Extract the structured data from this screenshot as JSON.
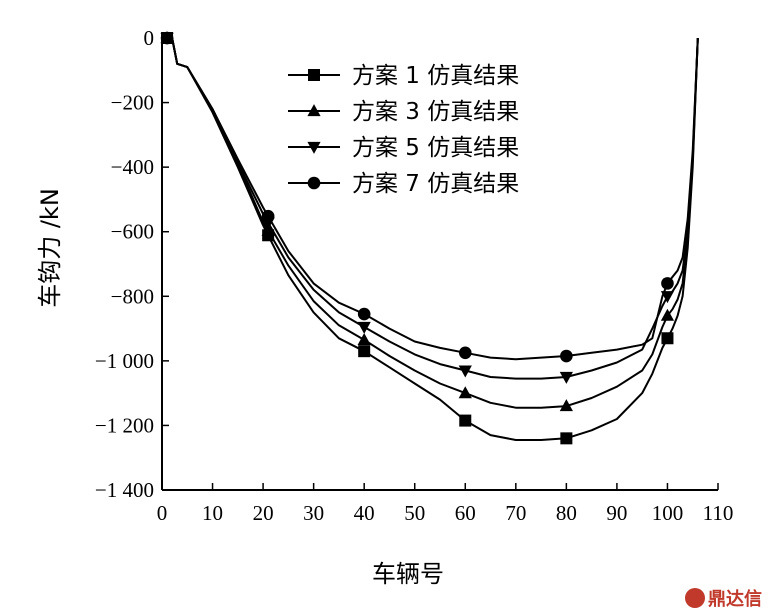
{
  "chart_data": {
    "type": "line",
    "xlabel": "车辆号",
    "ylabel": "车钩力 /kN",
    "xlim": [
      0,
      110
    ],
    "ylim": [
      -1400,
      0
    ],
    "xticks": [
      0,
      10,
      20,
      30,
      40,
      50,
      60,
      70,
      80,
      90,
      100,
      110
    ],
    "yticks": [
      0,
      -200,
      -400,
      -600,
      -800,
      -1000,
      -1200,
      -1400
    ],
    "xtick_labels": [
      "0",
      "10",
      "20",
      "30",
      "40",
      "50",
      "60",
      "70",
      "80",
      "90",
      "100",
      "110"
    ],
    "ytick_labels": [
      "0",
      "−200",
      "−400",
      "−600",
      "−800",
      "−1 000",
      "−1 200",
      "−1 400"
    ],
    "grid": false,
    "legend_position": "top-center",
    "series": [
      {
        "name": "方案 1 仿真结果",
        "marker": "square",
        "x": [
          1,
          2,
          3,
          5,
          10,
          15,
          20,
          25,
          30,
          35,
          40,
          45,
          50,
          55,
          60,
          65,
          70,
          75,
          80,
          85,
          90,
          95,
          97,
          99,
          100,
          101,
          102,
          103,
          104,
          105,
          106
        ],
        "y": [
          0,
          0,
          -80,
          -90,
          -230,
          -400,
          -580,
          -735,
          -850,
          -930,
          -970,
          -1020,
          -1070,
          -1120,
          -1185,
          -1230,
          -1245,
          -1245,
          -1240,
          -1215,
          -1180,
          -1100,
          -1040,
          -960,
          -930,
          -900,
          -860,
          -800,
          -650,
          -400,
          0
        ],
        "marker_x": [
          1,
          21,
          40,
          60,
          80,
          100
        ]
      },
      {
        "name": "方案 3 仿真结果",
        "marker": "triangle-up",
        "x": [
          1,
          2,
          3,
          5,
          10,
          15,
          20,
          25,
          30,
          35,
          40,
          45,
          50,
          55,
          60,
          65,
          70,
          75,
          80,
          85,
          90,
          95,
          97,
          99,
          100,
          101,
          102,
          103,
          104,
          105,
          106
        ],
        "y": [
          0,
          0,
          -80,
          -90,
          -225,
          -390,
          -570,
          -705,
          -815,
          -890,
          -935,
          -985,
          -1030,
          -1070,
          -1100,
          -1130,
          -1145,
          -1145,
          -1140,
          -1115,
          -1080,
          -1030,
          -980,
          -895,
          -860,
          -840,
          -810,
          -760,
          -620,
          -380,
          0
        ],
        "marker_x": [
          1,
          21,
          40,
          60,
          80,
          100
        ]
      },
      {
        "name": "方案 5 仿真结果",
        "marker": "triangle-down",
        "x": [
          1,
          2,
          3,
          5,
          10,
          15,
          20,
          25,
          30,
          35,
          40,
          45,
          50,
          55,
          60,
          65,
          70,
          75,
          80,
          85,
          90,
          95,
          97,
          99,
          100,
          101,
          102,
          103,
          104,
          105,
          106
        ],
        "y": [
          0,
          0,
          -80,
          -90,
          -220,
          -385,
          -545,
          -680,
          -780,
          -850,
          -895,
          -940,
          -980,
          -1010,
          -1030,
          -1050,
          -1055,
          -1055,
          -1050,
          -1030,
          -1005,
          -965,
          -900,
          -830,
          -800,
          -785,
          -760,
          -720,
          -600,
          -370,
          0
        ],
        "marker_x": [
          1,
          21,
          40,
          60,
          80,
          100
        ]
      },
      {
        "name": "方案 7 仿真结果",
        "marker": "circle",
        "x": [
          1,
          2,
          3,
          5,
          10,
          15,
          20,
          25,
          30,
          35,
          40,
          45,
          50,
          55,
          60,
          65,
          70,
          75,
          80,
          85,
          90,
          95,
          97,
          99,
          100,
          101,
          102,
          103,
          104,
          105,
          106
        ],
        "y": [
          0,
          0,
          -80,
          -90,
          -220,
          -375,
          -525,
          -660,
          -760,
          -820,
          -855,
          -900,
          -940,
          -960,
          -975,
          -990,
          -995,
          -990,
          -985,
          -975,
          -965,
          -950,
          -930,
          -800,
          -760,
          -740,
          -720,
          -680,
          -560,
          -350,
          0
        ],
        "marker_x": [
          1,
          21,
          40,
          60,
          80,
          100
        ]
      }
    ]
  },
  "watermark": {
    "text": "鼎达信",
    "color": "#c0392b"
  }
}
